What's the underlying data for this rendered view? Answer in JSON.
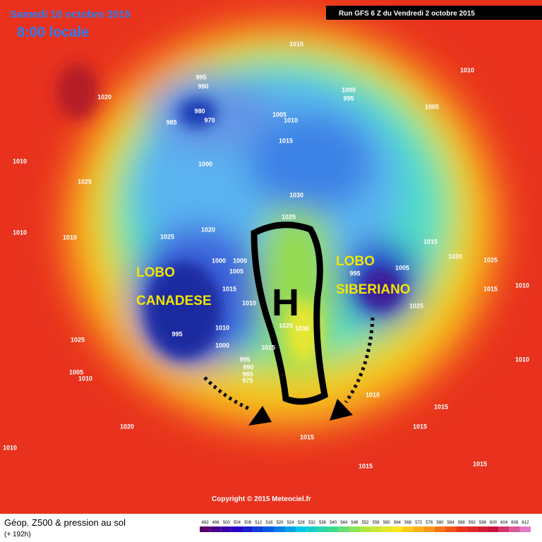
{
  "header": {
    "date": "Samedi 10 octobre 2015",
    "time": "8:00 locale",
    "run": "Run GFS 6 Z du Vendredi 2 octobre 2015"
  },
  "annotations": {
    "canada": [
      "LOBO",
      "CANADESE"
    ],
    "siberia": [
      "LOBO",
      "SIBERIANO"
    ],
    "high": "H"
  },
  "isobars": {
    "labels": [
      "1015",
      "1010",
      "1020",
      "995",
      "990",
      "1000",
      "995",
      "1005",
      "980",
      "985",
      "970",
      "1005",
      "1010",
      "1015",
      "1000",
      "1010",
      "1025",
      "1030",
      "1025",
      "1020",
      "1025",
      "1010",
      "1015",
      "1020",
      "1025",
      "1000",
      "1000",
      "1005",
      "1010",
      "1015",
      "995",
      "1005",
      "1025",
      "1010",
      "1015",
      "1010",
      "995",
      "1025",
      "1030",
      "1000",
      "995",
      "990",
      "985",
      "975",
      "1015",
      "1025",
      "1005",
      "1010",
      "1010",
      "1010",
      "1015",
      "1015",
      "1015",
      "1020",
      "1010",
      "1015",
      "1015",
      "1010"
    ]
  },
  "copyright": "Copyright © 2015 Meteociel.fr",
  "legend": {
    "title": "Géop. Z500 & pression au sol",
    "subtitle": "(+ 192h)",
    "levels": [
      492,
      496,
      500,
      504,
      508,
      512,
      516,
      520,
      524,
      528,
      532,
      536,
      540,
      544,
      548,
      552,
      556,
      560,
      564,
      568,
      572,
      576,
      580,
      584,
      588,
      592,
      596,
      600,
      604,
      608,
      612
    ]
  }
}
